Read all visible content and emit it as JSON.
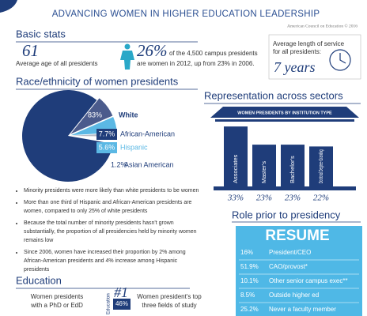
{
  "header": {
    "title": "ADVANCING WOMEN IN HIGHER EDUCATION LEADERSHIP",
    "source": "American Council on Education © 2016"
  },
  "basic_stats": {
    "title": "Basic stats",
    "age_value": "61",
    "age_label": "Average age of all presidents",
    "women_value": "26%",
    "women_line1": "of the 4,500 campus presidents",
    "women_line2": "are women in 2012, up from 23% in 2006.",
    "service_line1": "Average length of service",
    "service_line2": "for all presidents:",
    "service_value": "7 years"
  },
  "race": {
    "title": "Race/ethnicity of women presidents",
    "type": "pie",
    "categories": [
      "White",
      "African-American",
      "Hispanic",
      "Asian American"
    ],
    "values": [
      83,
      7.7,
      5.6,
      1.2
    ],
    "value_labels": [
      "83%",
      "7.7%",
      "5.6%",
      "1.2%"
    ],
    "colors": [
      "#1f3d7a",
      "#4b5b8c",
      "#5bb8e4",
      "#b8bcc6"
    ]
  },
  "findings": [
    "Minority presidents were more likely than white presidents to be women",
    "More than one third of Hispanic and African-American presidents are women, compared to only 25% of white presidents",
    "Because the total number of minority presidents hasn't grown substantially, the proportion of all presidencies held by minority women remains low",
    "Since 2006, women have increased their proportion by 2% among African-American presidents and 4% increase among Hispanic presidents"
  ],
  "education": {
    "title": "Education",
    "phd_line1": "Women presidents",
    "phd_line2": "with a PhD or EdD",
    "rank": "#1",
    "field": "Education",
    "field_value": "46%",
    "fields_line1": "Women president's top",
    "fields_line2": "three fields of study"
  },
  "sectors": {
    "title": "Representation across sectors",
    "type": "bar",
    "subtitle": "WOMEN PRESIDENTS BY INSTITUTION TYPE",
    "categories": [
      "Associates",
      "Master's",
      "Bachelor's",
      "Doctoral Degree-Granting"
    ],
    "values": [
      33,
      23,
      23,
      22
    ],
    "value_labels": [
      "33%",
      "23%",
      "23%",
      "22%"
    ],
    "color": "#1f3d7a"
  },
  "prior_role": {
    "title": "Role prior to presidency",
    "heading": "RESUME",
    "rows": [
      [
        "16%",
        "President/CEO"
      ],
      [
        "51.9%",
        "CAO/provost*"
      ],
      [
        "10.1%",
        "Other senior campus exec**"
      ],
      [
        "8.5%",
        "Outside higher ed"
      ],
      [
        "25.2%",
        "Never a faculty member"
      ]
    ]
  }
}
